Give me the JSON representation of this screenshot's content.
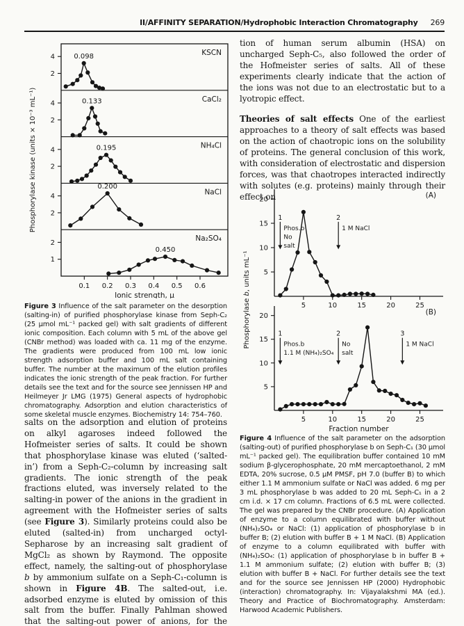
{
  "header": {
    "title": "II/AFFINITY SEPARATION/Hydrophobic Interaction Chromatography",
    "page_number": "269"
  },
  "left_column": {
    "figure3_caption": [
      {
        "t": "Figure 3",
        "s": "b"
      },
      {
        "t": "  Influence of the salt parameter on the desorption (salting-in) of purified phosphorylase kinase from Seph-C₂ (25 μmol mL⁻¹ packed gel) with salt gradients of different ionic composition. Each column with 5 mL of the above gel (CNBr method) was loaded with ca. 11 mg of the enzyme. The gradients were produced from 100 mL low ionic strength adsorption buffer and 100 mL salt containing buffer. The number at the maximum of the elution profiles indicates the ionic strength of the peak fraction. For further details see the text and for the source see Jennissen HP and Heilmeyer Jr LMG (1975) General aspects of hydrophobic chromatography. Adsorption and elution characteristics of some skeletal muscle enzymes. Biochemistry 14: 754–760."
      }
    ],
    "body_text": [
      {
        "t": "salts on the adsorption and elution of proteins on alkyl agaroses indeed followed the Hofmeister series of salts. It could be shown that phosphorylase kinase was eluted (‘salted-in’) from a Seph-C₂-column by increasing salt gradients. The ionic strength of the peak fractions eluted, was inversely related to the salting-in power of the anions in the gradient in agreement with the Hofmeister series of salts (see "
      },
      {
        "t": "Figure 3",
        "s": "b"
      },
      {
        "t": "). Similarly proteins could also be eluted (salted-in) from uncharged octyl-Sepharose by an increasing salt gradient of MgCl₂ as shown by Raymond. The opposite effect, namely, the salting-out of phosphorylase "
      },
      {
        "t": "b",
        "s": "i"
      },
      {
        "t": " by ammonium sulfate on a Seph-C₁-column is shown in "
      },
      {
        "t": "Figure 4B",
        "s": "b"
      },
      {
        "t": ". The salted-out, i.e. adsorbed enzyme is eluted by omission of this salt from the buffer. Finally Pahlman showed that the salting-out power of anions, for the adsorp-"
      }
    ]
  },
  "right_column": {
    "paragraph1": [
      {
        "t": "tion of human serum albumin (HSA) on uncharged Seph-C₅, also followed the order of the Hofmeister series of salts. All of these experiments clearly indicate that the action of the ions was not due to an electrostatic but to a lyotropic effect."
      }
    ],
    "paragraph2": [
      {
        "t": "Theories of salt effects",
        "s": "b"
      },
      {
        "t": "  One of the earliest approaches to a theory of salt effects was based on the action of chaotropic ions on the solubility of proteins. The general conclusion of this work, with consideration of electrostatic and dispersion forces, was that chaotropes interacted indirectly with solutes (e.g. proteins) mainly through their effect on"
      }
    ],
    "figure4_caption": [
      {
        "t": "Figure 4",
        "s": "b"
      },
      {
        "t": "  Influence of the salt parameter on the adsorption (salting-out) of purified phosphorylase b on Seph-C₁ (30 μmol mL⁻¹ packed gel). The equilibration buffer contained 10 mM sodium β-glycerophosphate, 20 mM mercaptoethanol, 2 mM EDTA, 20% sucrose, 0.5 μM PMSF, pH 7.0 (buffer B) to which either 1.1 M ammonium sulfate or NaCl was added. 6 mg per 3 mL phosphorylase b was added to 20 mL Seph-C₁ in a 2 cm i.d. × 17 cm column. Fractions of 6.5 mL were collected. The gel was prepared by the CNBr procedure. (A) Application of enzyme to a column equilibrated with buffer without (NH₄)₂SO₄ or NaCl: (1) application of phosphorylase b in buffer B; (2) elution with buffer B + 1 M NaCl. (B) Application of enzyme to a column equilibrated with buffer with (NH₄)₂SO₄: (1) application of phosphorylase b in buffer B + 1.1 M ammonium sulfate; (2) elution with buffer B; (3) elution with buffer B + NaCl. For further details see the text and for the source see Jennissen HP (2000) Hydrophobic (interaction) chromatography. In: Vijayalakshmi MA (ed.). Theory and Practice of Biochromatography. Amsterdam: Harwood Academic Publishers."
      }
    ]
  },
  "chart_data": [
    {
      "id": "figure3",
      "type": "line",
      "xlabel": "Ionic strength, μ",
      "ylabel": "Phosphorylase kinase (units × 10⁻³ mL⁻¹)",
      "xlim": [
        0,
        0.72
      ],
      "xticks": [
        0.1,
        0.2,
        0.3,
        0.4,
        0.5,
        0.6
      ],
      "panels": [
        {
          "salt": "KSCN",
          "peak_label": "0.098",
          "peak_x": 0.098,
          "ymax": 5.5,
          "yticks": [
            2,
            4
          ],
          "x": [
            0.02,
            0.05,
            0.07,
            0.085,
            0.098,
            0.115,
            0.135,
            0.15,
            0.165,
            0.18
          ],
          "y": [
            0.45,
            0.75,
            1.2,
            1.75,
            3.2,
            2.1,
            0.95,
            0.5,
            0.3,
            0.2
          ]
        },
        {
          "salt": "CaCl₂",
          "peak_label": "0.133",
          "peak_x": 0.133,
          "ymax": 5.5,
          "yticks": [
            2,
            4
          ],
          "x": [
            0.05,
            0.08,
            0.1,
            0.118,
            0.133,
            0.147,
            0.158,
            0.17,
            0.19
          ],
          "y": [
            0.18,
            0.18,
            1.0,
            2.2,
            3.4,
            2.4,
            1.55,
            0.65,
            0.4
          ]
        },
        {
          "salt": "NH₄Cl",
          "peak_label": "0.195",
          "peak_x": 0.195,
          "ymax": 5.5,
          "yticks": [
            2,
            4
          ],
          "x": [
            0.045,
            0.07,
            0.09,
            0.11,
            0.13,
            0.15,
            0.17,
            0.195,
            0.215,
            0.235,
            0.255,
            0.275,
            0.3
          ],
          "y": [
            0.2,
            0.3,
            0.5,
            0.9,
            1.5,
            2.2,
            3.0,
            3.35,
            2.7,
            1.95,
            1.3,
            0.75,
            0.3
          ]
        },
        {
          "salt": "NaCl",
          "peak_label": "0.200",
          "peak_x": 0.2,
          "ymax": 5.5,
          "yticks": [
            2,
            4
          ],
          "x": [
            0.04,
            0.085,
            0.135,
            0.2,
            0.25,
            0.295,
            0.345
          ],
          "y": [
            0.5,
            1.3,
            2.7,
            4.3,
            2.4,
            1.35,
            0.6
          ]
        },
        {
          "salt": "Na₂SO₄",
          "peak_label": "0.450",
          "peak_x": 0.45,
          "ymax": 2.75,
          "yticks": [
            1,
            2
          ],
          "x": [
            0.205,
            0.25,
            0.295,
            0.335,
            0.375,
            0.405,
            0.45,
            0.49,
            0.525,
            0.565,
            0.63,
            0.68
          ],
          "y": [
            0.15,
            0.2,
            0.38,
            0.68,
            0.93,
            1.02,
            1.15,
            0.95,
            0.88,
            0.62,
            0.35,
            0.2
          ]
        }
      ]
    },
    {
      "id": "figure4",
      "type": "line",
      "xlabel": "Fraction number",
      "ylabel_runs": [
        {
          "t": "Phosphorylase "
        },
        {
          "t": "b",
          "s": "i"
        },
        {
          "t": ", units mL⁻¹"
        }
      ],
      "xlim": [
        0,
        29
      ],
      "xticks": [
        5,
        10,
        15,
        20,
        25
      ],
      "ymax": 22,
      "yticks": [
        5,
        10,
        15,
        20
      ],
      "panels": [
        {
          "label": "(A)",
          "x": [
            1,
            2,
            3,
            4,
            5,
            6,
            7,
            8,
            9,
            10,
            11,
            12,
            13,
            14,
            15,
            16,
            17
          ],
          "y": [
            0.2,
            1.5,
            5.5,
            9.0,
            17.3,
            9.1,
            7.0,
            4.3,
            3.0,
            0.2,
            0.2,
            0.3,
            0.5,
            0.5,
            0.55,
            0.5,
            0.3
          ],
          "arrows": [
            {
              "x": 1,
              "n": "1",
              "lines": [
                "Phos.b",
                "No",
                "salt"
              ]
            },
            {
              "x": 11,
              "n": "2",
              "lines": [
                "1 M NaCl"
              ]
            }
          ]
        },
        {
          "label": "(B)",
          "x": [
            1,
            2,
            3,
            4,
            5,
            6,
            7,
            8,
            9,
            10,
            11,
            12,
            13,
            14,
            15,
            16,
            17,
            18,
            19,
            20,
            21,
            22,
            23,
            24,
            25,
            26
          ],
          "y": [
            0.2,
            0.9,
            1.3,
            1.3,
            1.3,
            1.3,
            1.3,
            1.3,
            1.75,
            1.3,
            1.3,
            1.35,
            4.4,
            5.3,
            9.3,
            17.5,
            6.0,
            4.2,
            4.1,
            3.5,
            3.2,
            2.2,
            1.6,
            1.3,
            1.5,
            1.0
          ],
          "arrows": [
            {
              "x": 1,
              "n": "1",
              "lines": [
                "Phos.b",
                "1.1 M (NH₄)₂SO₄"
              ]
            },
            {
              "x": 11,
              "n": "2",
              "lines": [
                "No",
                "salt"
              ]
            },
            {
              "x": 22,
              "n": "3",
              "lines": [
                "1 M NaCl"
              ]
            }
          ]
        }
      ]
    }
  ]
}
